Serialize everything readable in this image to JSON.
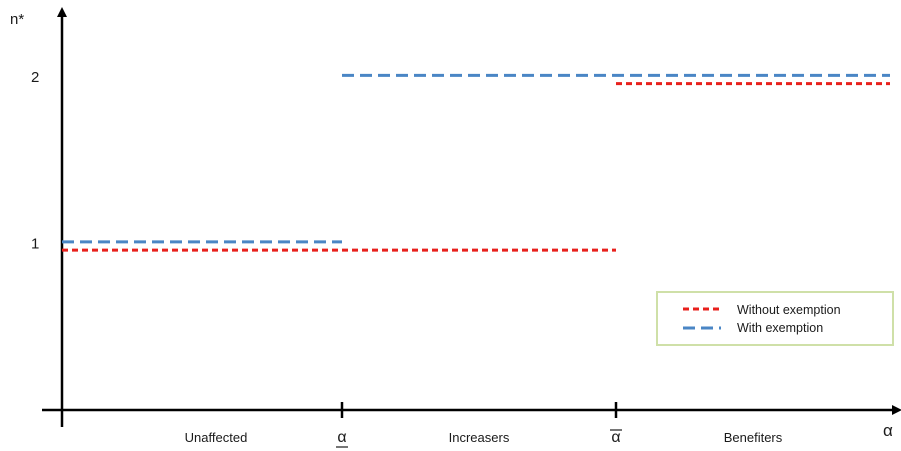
{
  "chart_data": {
    "type": "line",
    "y_axis_label": "n*",
    "x_axis_label": "α",
    "y_ticks": [
      {
        "value": 1,
        "label": "1"
      },
      {
        "value": 2,
        "label": "2"
      }
    ],
    "x_ticks": [
      {
        "value": 1,
        "label": "α",
        "decoration": "underline"
      },
      {
        "value": 2,
        "label": "α",
        "decoration": "overline"
      }
    ],
    "region_labels": [
      {
        "x": 0.55,
        "label": "Unaffected"
      },
      {
        "x": 1.5,
        "label": "Increasers"
      },
      {
        "x": 2.5,
        "label": "Benefiters"
      }
    ],
    "xlim": [
      0,
      3
    ],
    "ylim": [
      0,
      2.35
    ],
    "series": [
      {
        "name": "Without exemption",
        "color": "#e8201c",
        "dash": "short",
        "segments": [
          {
            "x": [
              0,
              2
            ],
            "y": 0.96
          },
          {
            "x": [
              2,
              3
            ],
            "y": 1.96
          }
        ]
      },
      {
        "name": "With exemption",
        "color": "#4a86c5",
        "dash": "long",
        "segments": [
          {
            "x": [
              0,
              1
            ],
            "y": 1.01
          },
          {
            "x": [
              1,
              3
            ],
            "y": 2.01
          }
        ]
      }
    ],
    "legend_position": "lower-right",
    "grid": false
  }
}
